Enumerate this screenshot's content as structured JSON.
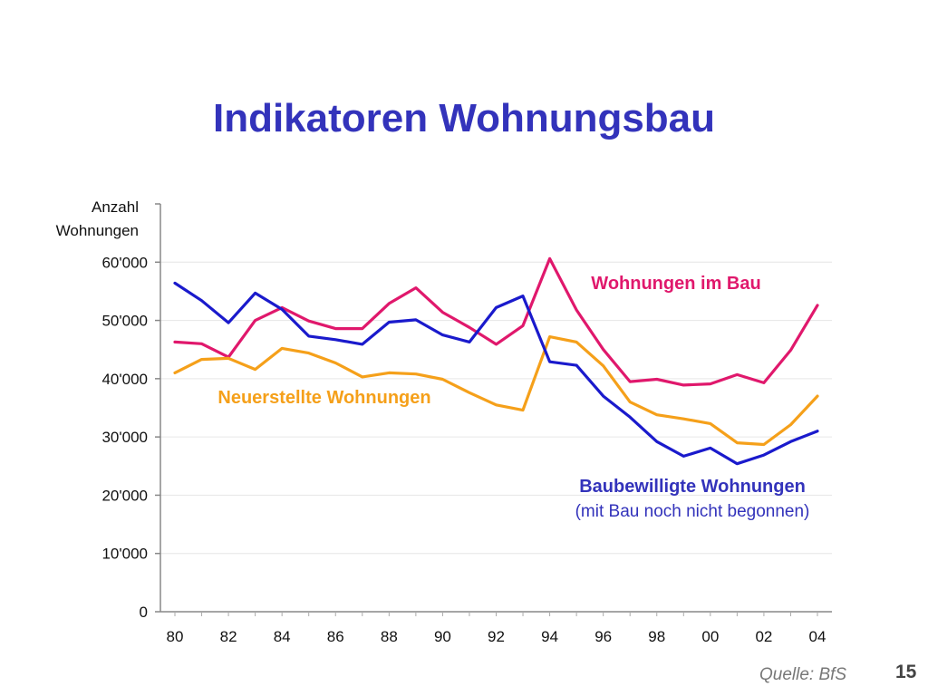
{
  "slide": {
    "title": "Indikatoren Wohnungsbau",
    "source": "Quelle: BfS",
    "page_number": "15"
  },
  "chart_data": {
    "type": "line",
    "title": "",
    "ylabel": "Anzahl Wohnungen",
    "ylabel_lines": [
      "Anzahl",
      "Wohnungen"
    ],
    "xlabel": "",
    "ylim": [
      0,
      70000
    ],
    "yticks": [
      0,
      10000,
      20000,
      30000,
      40000,
      50000,
      60000
    ],
    "ytick_labels": [
      "0",
      "10'000",
      "20'000",
      "30'000",
      "40'000",
      "50'000",
      "60'000"
    ],
    "x": [
      1980,
      1981,
      1982,
      1983,
      1984,
      1985,
      1986,
      1987,
      1988,
      1989,
      1990,
      1991,
      1992,
      1993,
      1994,
      1995,
      1996,
      1997,
      1998,
      1999,
      2000,
      2001,
      2002,
      2003,
      2004
    ],
    "xticks": [
      1980,
      1982,
      1984,
      1986,
      1988,
      1990,
      1992,
      1994,
      1996,
      1998,
      2000,
      2002,
      2004
    ],
    "xtick_labels": [
      "80",
      "82",
      "84",
      "86",
      "88",
      "90",
      "92",
      "94",
      "96",
      "98",
      "00",
      "02",
      "04"
    ],
    "grid": true,
    "series": [
      {
        "name": "Wohnungen im Bau",
        "color": "#e0186c",
        "values": [
          46300,
          46000,
          43700,
          50000,
          52200,
          49900,
          48600,
          48600,
          52900,
          55600,
          51400,
          48800,
          45900,
          49100,
          60600,
          51800,
          45000,
          39500,
          39900,
          38900,
          39100,
          40700,
          39300,
          44900,
          52600
        ]
      },
      {
        "name": "Neuerstellte Wohnungen",
        "color": "#f5a01a",
        "values": [
          41000,
          43300,
          43500,
          41600,
          45200,
          44400,
          42700,
          40300,
          41000,
          40800,
          39900,
          37600,
          35500,
          34600,
          47200,
          46300,
          42200,
          36000,
          33800,
          33100,
          32300,
          29000,
          28700,
          32100,
          37000
        ]
      },
      {
        "name": "Baubewilligte Wohnungen",
        "name_detail": "(mit Bau noch nicht begonnen)",
        "color": "#1a1acc",
        "values": [
          56400,
          53400,
          49600,
          54700,
          51900,
          47300,
          46700,
          45900,
          49700,
          50100,
          47500,
          46300,
          52200,
          54200,
          42900,
          42300,
          37000,
          33400,
          29200,
          26700,
          28100,
          25400,
          26900,
          29200,
          31000
        ]
      }
    ]
  }
}
